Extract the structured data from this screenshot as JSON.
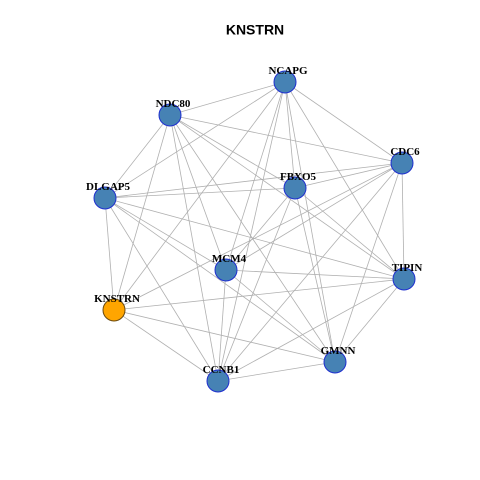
{
  "title": "KNSTRN",
  "nodes": [
    {
      "label": "NCAPG"
    },
    {
      "label": "NDC80"
    },
    {
      "label": "CDC6"
    },
    {
      "label": "FBXO5"
    },
    {
      "label": "DLGAP5"
    },
    {
      "label": "MCM4"
    },
    {
      "label": "TIPIN"
    },
    {
      "label": "KNSTRN"
    },
    {
      "label": "GMNN"
    },
    {
      "label": "CCNB1"
    }
  ]
}
